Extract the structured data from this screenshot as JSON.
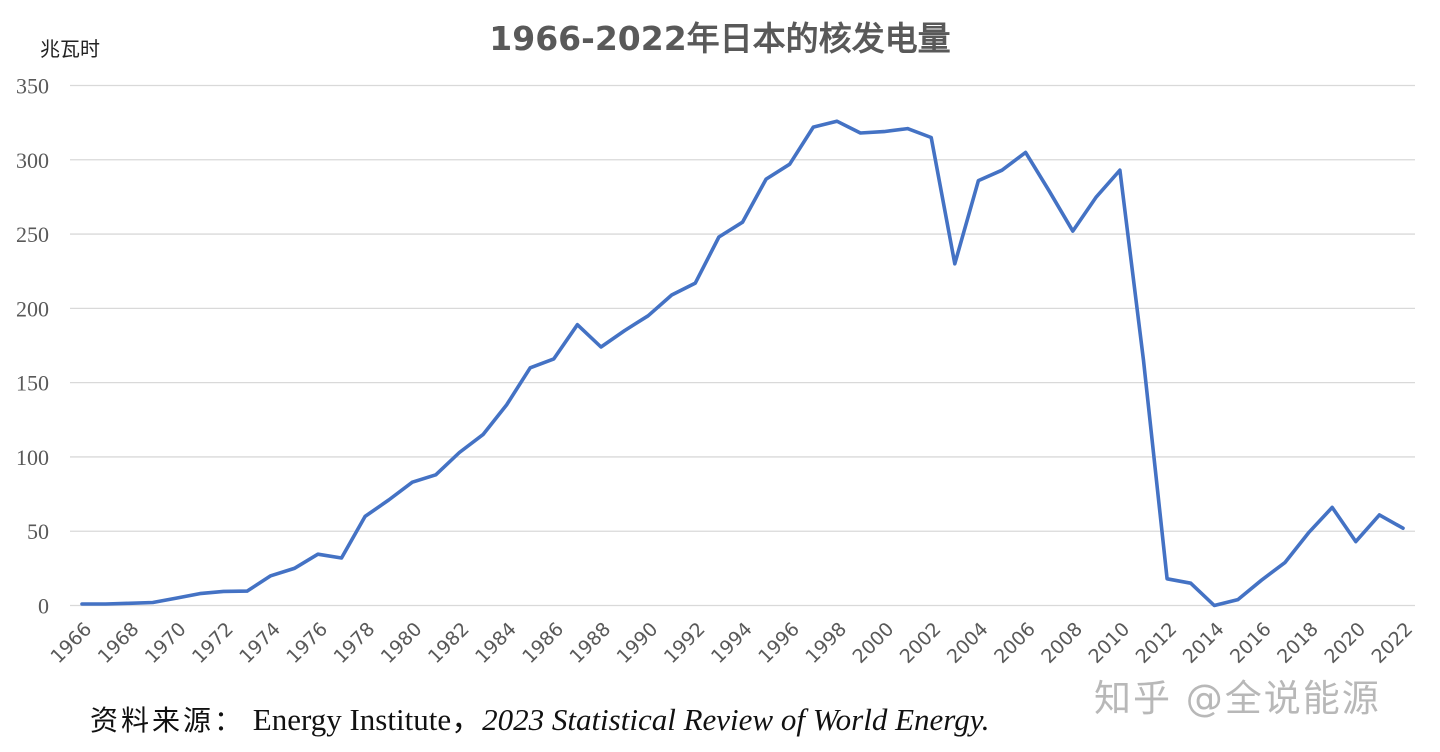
{
  "chart_data": {
    "type": "line",
    "title": "1966-2022年日本的核发电量",
    "ylabel": "兆瓦时",
    "xlabel": "",
    "ylim": [
      0,
      350
    ],
    "yticks": [
      0,
      50,
      100,
      150,
      200,
      250,
      300,
      350
    ],
    "grid": true,
    "legend": "none",
    "x": [
      1966,
      1967,
      1968,
      1969,
      1970,
      1971,
      1972,
      1973,
      1974,
      1975,
      1976,
      1977,
      1978,
      1979,
      1980,
      1981,
      1982,
      1983,
      1984,
      1985,
      1986,
      1987,
      1988,
      1989,
      1990,
      1991,
      1992,
      1993,
      1994,
      1995,
      1996,
      1997,
      1998,
      1999,
      2000,
      2001,
      2002,
      2003,
      2004,
      2005,
      2006,
      2007,
      2008,
      2009,
      2010,
      2011,
      2012,
      2013,
      2014,
      2015,
      2016,
      2017,
      2018,
      2019,
      2020,
      2021,
      2022
    ],
    "xtick_labels": [
      "1966",
      "1968",
      "1970",
      "1972",
      "1974",
      "1976",
      "1978",
      "1980",
      "1982",
      "1984",
      "1986",
      "1988",
      "1990",
      "1992",
      "1994",
      "1996",
      "1998",
      "2000",
      "2002",
      "2004",
      "2006",
      "2008",
      "2010",
      "2012",
      "2014",
      "2016",
      "2018",
      "2020",
      "2022"
    ],
    "series": [
      {
        "name": "日本核发电量",
        "color": "#4472c4",
        "values": [
          1,
          1,
          1.5,
          2,
          5,
          8,
          9.5,
          9.7,
          20,
          25,
          34.5,
          32,
          60,
          71,
          83,
          88,
          103,
          115,
          135,
          160,
          166,
          189,
          174,
          185,
          195,
          209,
          217,
          248,
          258,
          287,
          297,
          322,
          326,
          318,
          319,
          321,
          315,
          230,
          286,
          293,
          305,
          279,
          252,
          275,
          293,
          165,
          18,
          15,
          0,
          4,
          17,
          29,
          49,
          66,
          43,
          61,
          52
        ]
      }
    ]
  },
  "footer": {
    "source_label": "资料来源：",
    "source_org": "Energy Institute，",
    "source_title": "2023 Statistical Review of World Energy."
  },
  "watermark": "知乎 @全说能源"
}
